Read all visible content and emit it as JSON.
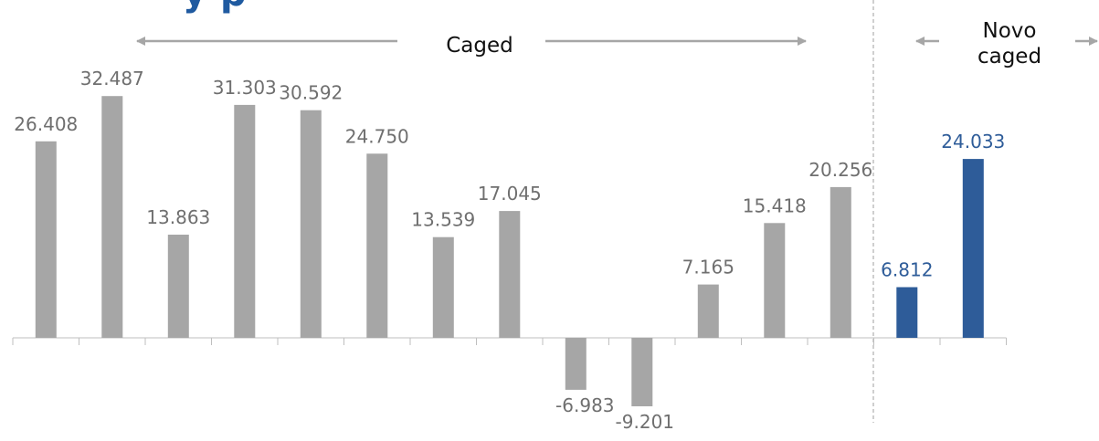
{
  "title_fragment": "y               p",
  "colors": {
    "caged": "#a6a6a6",
    "novo_caged": "#2e5c99",
    "axis": "#bfbfbf",
    "arrow": "#a6a6a6",
    "divider": "#bfbfbf"
  },
  "annotations": {
    "caged_label": "Caged",
    "novo_caged_label_line1": "Novo",
    "novo_caged_label_line2": "caged"
  },
  "chart_data": {
    "type": "bar",
    "title": "",
    "xlabel": "",
    "ylabel": "",
    "grid": false,
    "legend": "none",
    "ylim": [
      -12000,
      36000
    ],
    "series": [
      {
        "name": "Caged",
        "color": "#a6a6a6",
        "values": [
          26408,
          32487,
          13863,
          31303,
          30592,
          24750,
          13539,
          17045,
          -6983,
          -9201,
          7165,
          15418,
          20256
        ],
        "labels": [
          "26.408",
          "32.487",
          "13.863",
          "31.303",
          "30.592",
          "24.750",
          "13.539",
          "17.045",
          "-6.983",
          "-9.201",
          "7.165",
          "15.418",
          "20.256"
        ]
      },
      {
        "name": "Novo caged",
        "color": "#2e5c99",
        "values": [
          6812,
          24033
        ],
        "labels": [
          "6.812",
          "24.033"
        ]
      }
    ]
  }
}
